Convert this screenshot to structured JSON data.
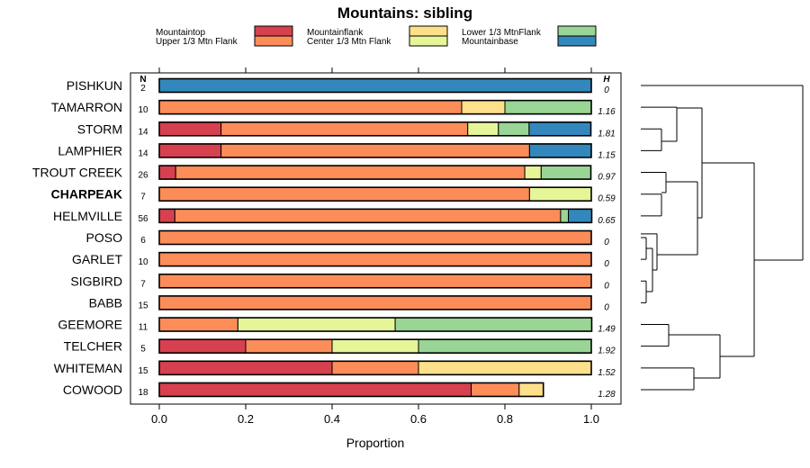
{
  "chart_data": {
    "type": "bar",
    "orientation": "horizontal",
    "stacked": true,
    "title": "Mountains: sibling",
    "xlabel": "Proportion",
    "xlim": [
      0,
      1
    ],
    "xticks": [
      "0.0",
      "0.2",
      "0.4",
      "0.6",
      "0.8",
      "1.0"
    ],
    "n_header": "N",
    "h_header": "H",
    "bold_category": "CHARPEAK",
    "legend": [
      {
        "key": "mountaintop",
        "label": "Mountaintop",
        "color": "#d7404e"
      },
      {
        "key": "upper",
        "label": "Upper 1/3 Mtn Flank",
        "color": "#fc8d59"
      },
      {
        "key": "flank",
        "label": "Mountainflank",
        "color": "#fee08b"
      },
      {
        "key": "center",
        "label": "Center 1/3 Mtn Flank",
        "color": "#e6f598"
      },
      {
        "key": "lower",
        "label": "Lower 1/3 MtnFlank",
        "color": "#99d594"
      },
      {
        "key": "base",
        "label": "Mountainbase",
        "color": "#3288bd"
      }
    ],
    "categories": [
      "PISHKUN",
      "TAMARRON",
      "STORM",
      "LAMPHIER",
      "TROUT CREEK",
      "CHARPEAK",
      "HELMVILLE",
      "POSO",
      "GARLET",
      "SIGBIRD",
      "BABB",
      "GEEMORE",
      "TELCHER",
      "WHITEMAN",
      "COWOOD"
    ],
    "n": [
      "2",
      "10",
      "14",
      "14",
      "26",
      "7",
      "56",
      "6",
      "10",
      "7",
      "15",
      "11",
      "5",
      "15",
      "18"
    ],
    "h": [
      "0",
      "1.16",
      "1.81",
      "1.15",
      "0.97",
      "0.59",
      "0.65",
      "0",
      "0",
      "0",
      "0",
      "1.49",
      "1.92",
      "1.52",
      "1.28"
    ],
    "series": [
      {
        "name": "Mountaintop",
        "values": [
          0,
          0,
          0.143,
          0.143,
          0.038,
          0,
          0.036,
          0,
          0,
          0,
          0,
          0,
          0.2,
          0.4,
          0.722
        ]
      },
      {
        "name": "Upper 1/3 Mtn Flank",
        "values": [
          0,
          0.7,
          0.571,
          0.714,
          0.808,
          0.857,
          0.893,
          1,
          1,
          1,
          1,
          0.182,
          0.2,
          0.2,
          0.111
        ]
      },
      {
        "name": "Mountainflank",
        "values": [
          0,
          0.1,
          0,
          0,
          0,
          0,
          0,
          0,
          0,
          0,
          0,
          0,
          0,
          0.4,
          0.056
        ]
      },
      {
        "name": "Center 1/3 Mtn Flank",
        "values": [
          0,
          0,
          0.071,
          0,
          0.038,
          0.143,
          0,
          0,
          0,
          0,
          0,
          0.364,
          0.2,
          0,
          0
        ]
      },
      {
        "name": "Lower 1/3 MtnFlank",
        "values": [
          0,
          0.2,
          0.071,
          0,
          0.115,
          0,
          0.018,
          0,
          0,
          0,
          0,
          0.455,
          0.4,
          0,
          0
        ]
      },
      {
        "name": "Mountainbase",
        "values": [
          1,
          0,
          0.143,
          0.143,
          0,
          0,
          0.054,
          0,
          0,
          0,
          0,
          0,
          0,
          0,
          0
        ]
      }
    ]
  }
}
